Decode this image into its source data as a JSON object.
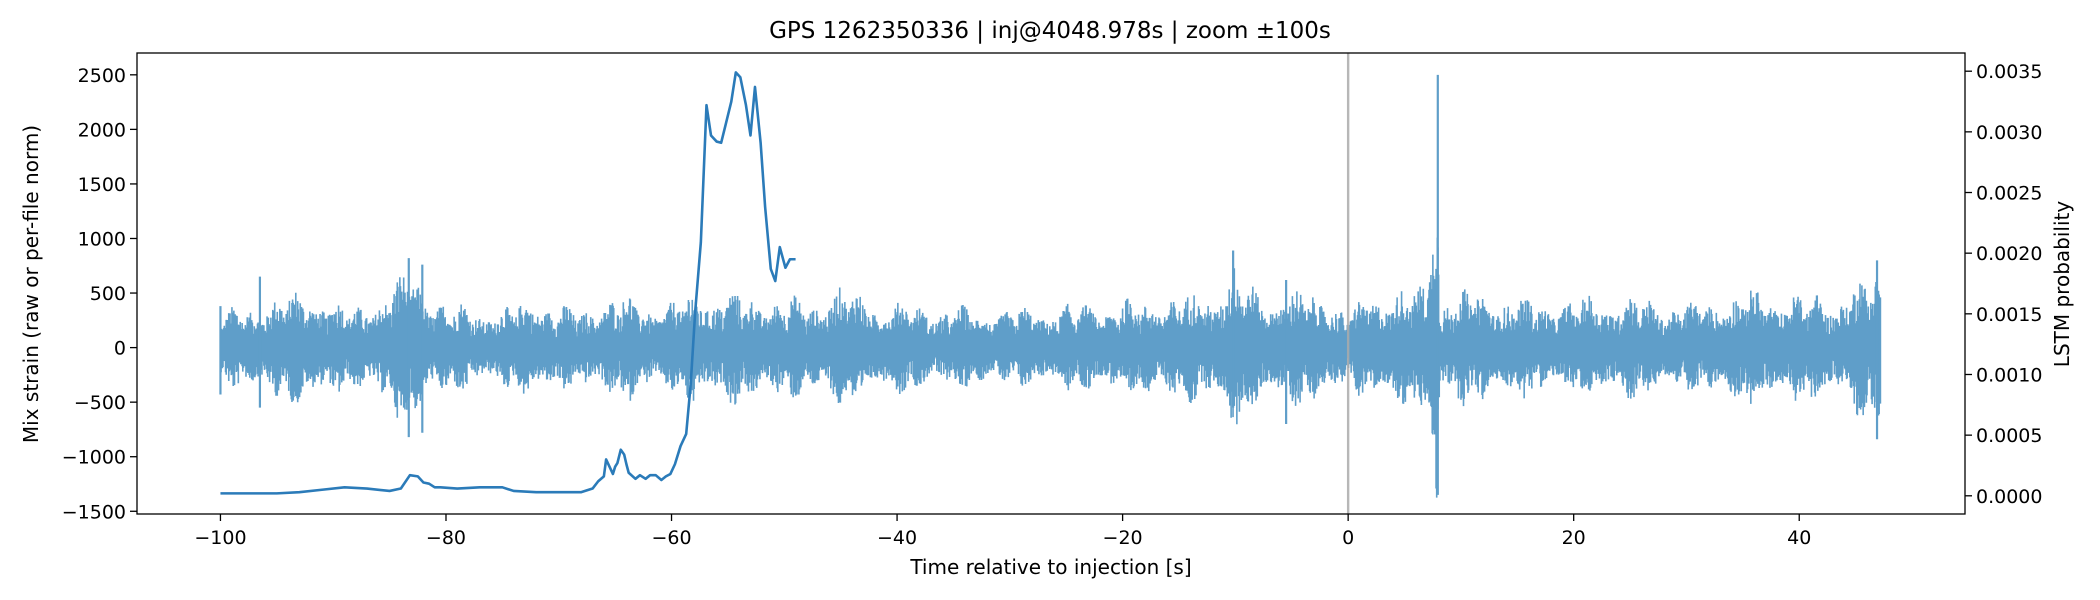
{
  "chart_data": {
    "type": "line",
    "title": "GPS 1262350336 | inj@4048.978s | zoom ±100s",
    "xlabel": "Time relative to injection [s]",
    "ylabel": "Mix strain (raw or per-file norm)",
    "y2label": "LSTM probability",
    "xlim": [
      -107.4,
      54.7
    ],
    "ylim": [
      -1525,
      2700
    ],
    "y2lim": [
      -0.00015,
      0.00365
    ],
    "x_ticks": [
      -100,
      -80,
      -60,
      -40,
      -20,
      0,
      20,
      40
    ],
    "x_tick_labels": [
      "−100",
      "−80",
      "−60",
      "−40",
      "−20",
      "0",
      "20",
      "40"
    ],
    "y_ticks": [
      -1500,
      -1000,
      -500,
      0,
      500,
      1000,
      1500,
      2000,
      2500
    ],
    "y_tick_labels": [
      "−1500",
      "−1000",
      "−500",
      "0",
      "500",
      "1000",
      "1500",
      "2000",
      "2500"
    ],
    "y2_ticks": [
      0,
      0.0005,
      0.001,
      0.0015,
      0.002,
      0.0025,
      0.003,
      0.0035
    ],
    "y2_tick_labels": [
      "0.0000",
      "0.0005",
      "0.0010",
      "0.0015",
      "0.0020",
      "0.0025",
      "0.0030",
      "0.0035"
    ],
    "grid": false,
    "vline": {
      "x": 0,
      "color": "#aaaaaa"
    },
    "colors": {
      "strain": "#5f9ec9",
      "prob": "#2b7bb9"
    },
    "strain_series": {
      "axis": "left",
      "x_range": [
        -100,
        47.2
      ],
      "envelope_x": [
        -100,
        -95,
        -92,
        -90,
        -88,
        -86,
        -84,
        -83,
        -81,
        -78,
        -75,
        -72,
        -70,
        -68,
        -65,
        -62,
        -60,
        -58,
        -56,
        -54,
        -52,
        -50,
        -48,
        -45,
        -42,
        -40,
        -38,
        -35,
        -30,
        -25,
        -22,
        -20,
        -15,
        -12,
        -10,
        -8,
        -5,
        -2,
        0,
        2,
        5,
        7,
        7.9,
        8.1,
        9,
        12,
        15,
        18,
        20,
        22,
        25,
        28,
        30,
        32,
        35,
        38,
        40,
        43,
        45,
        47.2
      ],
      "envelope": [
        350,
        500,
        600,
        450,
        420,
        520,
        700,
        800,
        480,
        420,
        380,
        520,
        420,
        380,
        540,
        460,
        450,
        580,
        560,
        540,
        500,
        520,
        450,
        620,
        480,
        450,
        420,
        400,
        380,
        420,
        450,
        480,
        520,
        560,
        820,
        560,
        560,
        550,
        350,
        550,
        600,
        620,
        2500,
        600,
        550,
        560,
        480,
        480,
        470,
        540,
        520,
        460,
        440,
        470,
        580,
        540,
        550,
        520,
        640,
        800
      ],
      "spikes": [
        {
          "x": -100,
          "min": -430,
          "max": 380
        },
        {
          "x": -96.5,
          "min": -550,
          "max": 650
        },
        {
          "x": -83.3,
          "min": -820,
          "max": 820
        },
        {
          "x": -82.1,
          "min": -780,
          "max": 760
        },
        {
          "x": -10.2,
          "min": -550,
          "max": 890
        },
        {
          "x": -5.5,
          "min": -700,
          "max": 620
        },
        {
          "x": 7.95,
          "min": -1350,
          "max": 2500
        },
        {
          "x": 46.9,
          "min": -840,
          "max": 800
        }
      ]
    },
    "probability_series": {
      "axis": "right",
      "x": [
        -100,
        -97,
        -95,
        -93,
        -91,
        -89,
        -87,
        -85,
        -84,
        -83.2,
        -82.5,
        -82,
        -81.5,
        -81,
        -80.5,
        -79,
        -77,
        -76,
        -75,
        -74,
        -72,
        -70,
        -68,
        -67,
        -66.5,
        -66,
        -65.8,
        -65.5,
        -65.2,
        -65,
        -64.8,
        -64.5,
        -64.2,
        -64,
        -63.8,
        -63.2,
        -62.8,
        -62.3,
        -61.9,
        -61.4,
        -60.9,
        -60.5,
        -60.1,
        -59.7,
        -59.2,
        -58.7,
        -58.3,
        -57.9,
        -57.4,
        -56.9,
        -56.5,
        -56,
        -55.6,
        -55.2,
        -54.7,
        -54.3,
        -53.9,
        -53.4,
        -53,
        -52.6,
        -52.1,
        -51.7,
        -51.2,
        -50.8,
        -50.4,
        -49.9,
        -49.5,
        -49
      ],
      "y": [
        2e-05,
        2e-05,
        2e-05,
        3e-05,
        5e-05,
        7e-05,
        6e-05,
        4e-05,
        6e-05,
        0.00017,
        0.00016,
        0.00011,
        0.0001,
        7e-05,
        7e-05,
        6e-05,
        7e-05,
        7e-05,
        7e-05,
        4e-05,
        3e-05,
        3e-05,
        3e-05,
        6e-05,
        0.00012,
        0.00016,
        0.0003,
        0.00024,
        0.00018,
        0.00024,
        0.00027,
        0.00038,
        0.00034,
        0.00026,
        0.00019,
        0.00014,
        0.00017,
        0.00014,
        0.00017,
        0.00017,
        0.00013,
        0.00016,
        0.00018,
        0.00026,
        0.00041,
        0.00051,
        0.00092,
        0.00152,
        0.00209,
        0.00322,
        0.00297,
        0.00292,
        0.00291,
        0.00306,
        0.00325,
        0.00349,
        0.00345,
        0.00322,
        0.00297,
        0.00337,
        0.00291,
        0.00238,
        0.00187,
        0.00177,
        0.00205,
        0.00188,
        0.00195,
        0.00195
      ]
    }
  }
}
